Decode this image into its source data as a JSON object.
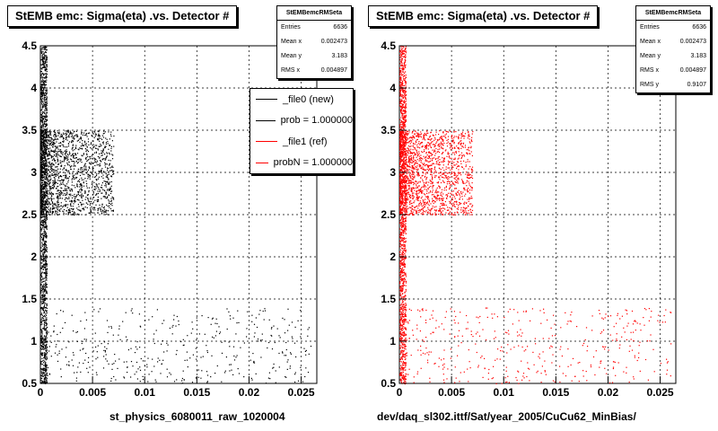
{
  "colors": {
    "new": "#000000",
    "ref": "#ff0000",
    "grid": "#000000"
  },
  "panels": [
    {
      "title": "StEMB emc: Sigma(eta) .vs. Detector #",
      "xlabel": "st_physics_6080011_raw_1020004",
      "stats": {
        "title": "StEMBemcRMSeta",
        "rows": [
          {
            "label": "Entries",
            "value": "6636"
          },
          {
            "label": "Mean x",
            "value": "0.002473"
          },
          {
            "label": "Mean y",
            "value": "3.183"
          },
          {
            "label": "RMS x",
            "value": "0.004897"
          }
        ]
      },
      "legend": [
        {
          "label": "_file0 (new)",
          "color": "#000000"
        },
        {
          "label": "prob = 1.000000",
          "color": "#000000"
        },
        {
          "label": "_file1 (ref)",
          "color": "#ff0000"
        },
        {
          "label": "probN = 1.000000",
          "color": "#ff0000"
        }
      ],
      "overlay_color": "#000000"
    },
    {
      "title": "StEMB emc: Sigma(eta) .vs. Detector #",
      "xlabel": "dev/daq_sl302.ittf/Sat/year_2005/CuCu62_MinBias/",
      "stats": {
        "title": "StEMBemcRMSeta",
        "rows": [
          {
            "label": "Entries",
            "value": "6636"
          },
          {
            "label": "Mean x",
            "value": "0.002473"
          },
          {
            "label": "Mean y",
            "value": "3.183"
          },
          {
            "label": "RMS x",
            "value": "0.004897"
          },
          {
            "label": "RMS y",
            "value": "0.9107"
          }
        ]
      },
      "overlay_color": "#ff0000"
    }
  ],
  "chart_data": [
    {
      "type": "scatter",
      "title": "StEMB emc: Sigma(eta) .vs. Detector #",
      "xlabel": "st_physics_6080011_raw_1020004",
      "ylabel": "",
      "xlim": [
        0,
        0.0265
      ],
      "ylim": [
        0.5,
        4.5
      ],
      "xticks": [
        "0",
        "0.005",
        "0.01",
        "0.015",
        "0.02",
        "0.025"
      ],
      "yticks": [
        "0.5",
        "1",
        "1.5",
        "2",
        "2.5",
        "3",
        "3.5",
        "4",
        "4.5"
      ],
      "grid": true,
      "legend_position": "top-right",
      "series": [
        {
          "name": "_file0 (new)",
          "color": "#000000",
          "clusters": [
            {
              "x": [
                0.0,
                0.0006
              ],
              "y": [
                0.5,
                4.5
              ],
              "density": "very high"
            },
            {
              "x": [
                0.0,
                0.007
              ],
              "y": [
                2.5,
                3.5
              ],
              "density": "high"
            },
            {
              "x": [
                0.0,
                0.026
              ],
              "y": [
                0.5,
                1.4
              ],
              "density": "sparse"
            }
          ]
        }
      ]
    },
    {
      "type": "scatter",
      "title": "StEMB emc: Sigma(eta) .vs. Detector #",
      "xlabel": "dev/daq_sl302.ittf/Sat/year_2005/CuCu62_MinBias/",
      "ylabel": "",
      "xlim": [
        0,
        0.0265
      ],
      "ylim": [
        0.5,
        4.5
      ],
      "xticks": [
        "0",
        "0.005",
        "0.01",
        "0.015",
        "0.02",
        "0.025"
      ],
      "yticks": [
        "0.5",
        "1",
        "1.5",
        "2",
        "2.5",
        "3",
        "3.5",
        "4",
        "4.5"
      ],
      "grid": true,
      "series": [
        {
          "name": "_file1 (ref)",
          "color": "#ff0000",
          "clusters": [
            {
              "x": [
                0.0,
                0.0006
              ],
              "y": [
                0.5,
                4.5
              ],
              "density": "very high"
            },
            {
              "x": [
                0.0,
                0.007
              ],
              "y": [
                2.5,
                3.5
              ],
              "density": "high"
            },
            {
              "x": [
                0.0,
                0.026
              ],
              "y": [
                0.5,
                1.4
              ],
              "density": "sparse"
            }
          ]
        }
      ]
    }
  ]
}
